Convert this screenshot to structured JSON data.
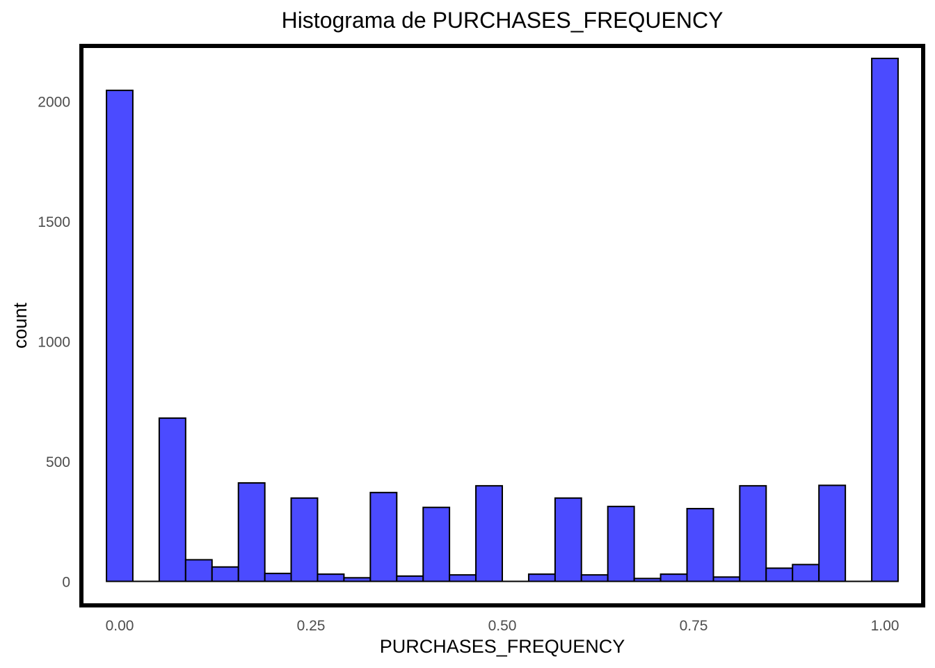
{
  "chart_data": {
    "type": "bar",
    "title": "Histograma de PURCHASES_FREQUENCY",
    "xlabel": "PURCHASES_FREQUENCY",
    "ylabel": "count",
    "xlim": [
      -0.05,
      1.05
    ],
    "ylim": [
      -100,
      2230
    ],
    "x_ticks": [
      0,
      0.25,
      0.5,
      0.75,
      1
    ],
    "x_tick_labels": [
      "0.00",
      "0.25",
      "0.50",
      "0.75",
      "1.00"
    ],
    "y_ticks": [
      0,
      500,
      1000,
      1500,
      2000
    ],
    "y_tick_labels": [
      "0",
      "500",
      "1000",
      "1500",
      "2000"
    ],
    "bins": [
      {
        "x0": -0.0172,
        "x1": 0.0172,
        "count": 2045
      },
      {
        "x0": 0.0172,
        "x1": 0.0517,
        "count": 0
      },
      {
        "x0": 0.0517,
        "x1": 0.0862,
        "count": 680
      },
      {
        "x0": 0.0862,
        "x1": 0.1207,
        "count": 90
      },
      {
        "x0": 0.1207,
        "x1": 0.1552,
        "count": 60
      },
      {
        "x0": 0.1552,
        "x1": 0.1897,
        "count": 410
      },
      {
        "x0": 0.1897,
        "x1": 0.2241,
        "count": 33
      },
      {
        "x0": 0.2241,
        "x1": 0.2586,
        "count": 347
      },
      {
        "x0": 0.2586,
        "x1": 0.2931,
        "count": 30
      },
      {
        "x0": 0.2931,
        "x1": 0.3276,
        "count": 15
      },
      {
        "x0": 0.3276,
        "x1": 0.3621,
        "count": 370
      },
      {
        "x0": 0.3621,
        "x1": 0.3966,
        "count": 22
      },
      {
        "x0": 0.3966,
        "x1": 0.431,
        "count": 308
      },
      {
        "x0": 0.431,
        "x1": 0.4655,
        "count": 27
      },
      {
        "x0": 0.4655,
        "x1": 0.5,
        "count": 398
      },
      {
        "x0": 0.5,
        "x1": 0.5345,
        "count": 0
      },
      {
        "x0": 0.5345,
        "x1": 0.569,
        "count": 30
      },
      {
        "x0": 0.569,
        "x1": 0.6034,
        "count": 347
      },
      {
        "x0": 0.6034,
        "x1": 0.6379,
        "count": 27
      },
      {
        "x0": 0.6379,
        "x1": 0.6724,
        "count": 312
      },
      {
        "x0": 0.6724,
        "x1": 0.7069,
        "count": 12
      },
      {
        "x0": 0.7069,
        "x1": 0.7414,
        "count": 30
      },
      {
        "x0": 0.7414,
        "x1": 0.7759,
        "count": 303
      },
      {
        "x0": 0.7759,
        "x1": 0.8103,
        "count": 18
      },
      {
        "x0": 0.8103,
        "x1": 0.8448,
        "count": 398
      },
      {
        "x0": 0.8448,
        "x1": 0.8793,
        "count": 55
      },
      {
        "x0": 0.8793,
        "x1": 0.9138,
        "count": 70
      },
      {
        "x0": 0.9138,
        "x1": 0.9483,
        "count": 400
      },
      {
        "x0": 0.9483,
        "x1": 0.9828,
        "count": 0
      },
      {
        "x0": 0.9828,
        "x1": 1.0172,
        "count": 2178
      }
    ],
    "bar_fill": "#4b4bff",
    "bar_stroke": "#000000",
    "grid": false,
    "legend": "none"
  }
}
